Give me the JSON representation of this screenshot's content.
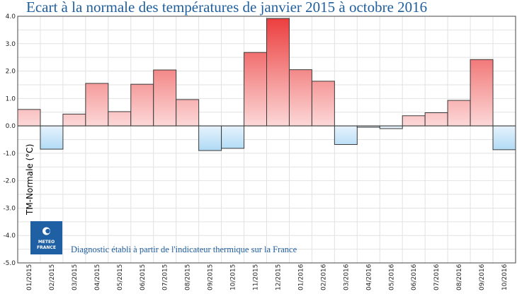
{
  "chart_data": {
    "type": "bar",
    "title": "Ecart à la normale des températures de janvier 2015 à octobre 2016",
    "ylabel": "TM-Normale (°C)",
    "xlabel": "",
    "categories": [
      "01/2015",
      "02/2015",
      "03/2015",
      "04/2015",
      "05/2015",
      "06/2015",
      "07/2015",
      "08/2015",
      "09/2015",
      "10/2015",
      "11/2015",
      "12/2015",
      "01/2016",
      "02/2016",
      "03/2016",
      "04/2016",
      "05/2016",
      "06/2016",
      "07/2016",
      "08/2016",
      "09/2016",
      "10/2016"
    ],
    "values": [
      0.6,
      -0.85,
      0.43,
      1.55,
      0.52,
      1.52,
      2.04,
      0.96,
      -0.9,
      -0.82,
      2.68,
      3.92,
      2.05,
      1.63,
      -0.68,
      -0.05,
      -0.1,
      0.37,
      0.48,
      0.93,
      2.42,
      -0.87
    ],
    "ylim": [
      -5.0,
      4.0
    ],
    "yticks": [
      "-5.0",
      "-4.0",
      "-3.0",
      "-2.0",
      "-1.0",
      "0.0",
      "1.0",
      "2.0",
      "3.0",
      "4.0"
    ],
    "grid": true,
    "annotation": "Diagnostic établi à partir de l'indicateur thermique sur la France",
    "colors": {
      "positive_light": "#fcd8d8",
      "positive_dark": "#ec3b3b",
      "negative_light": "#e6f3fc",
      "negative_dark": "#9dd1f3",
      "bar_stroke": "#3a3a3a",
      "grid": "#e2e2e2",
      "title": "#1f5f9e",
      "logo_bg": "#1f5fa3"
    }
  },
  "logo": {
    "line1": "METEO",
    "line2": "FRANCE",
    "icon": "meteo-france-logo-icon"
  }
}
